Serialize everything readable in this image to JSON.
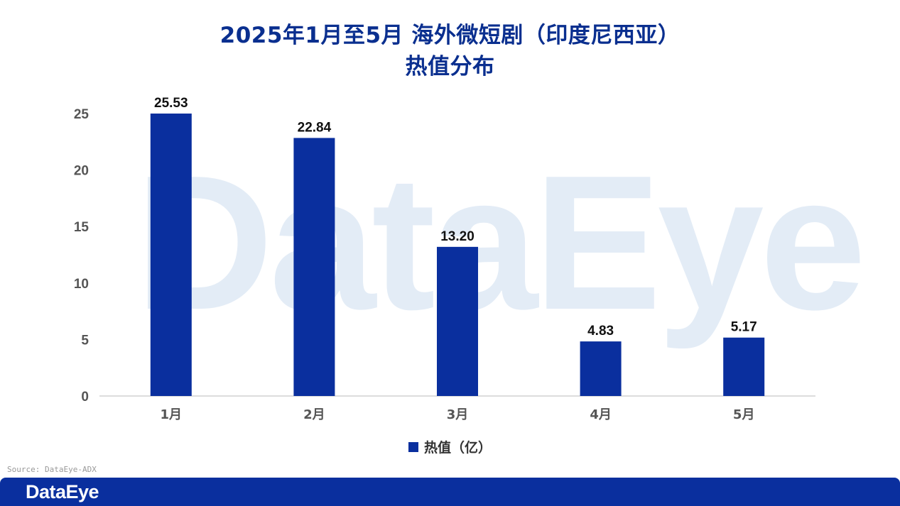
{
  "title": {
    "line1": "2025年1月至5月  海外微短剧（印度尼西亚）",
    "line2": "热值分布"
  },
  "chart_data": {
    "type": "bar",
    "categories": [
      "1月",
      "2月",
      "3月",
      "4月",
      "5月"
    ],
    "series": [
      {
        "name": "热值（亿）",
        "values": [
          25.53,
          22.84,
          13.2,
          4.83,
          5.17
        ],
        "value_labels": [
          "25.53",
          "22.84",
          "13.20",
          "4.83",
          "5.17"
        ]
      }
    ],
    "ylim": [
      0,
      25
    ],
    "yticks": [
      0,
      5,
      10,
      15,
      20,
      25
    ],
    "grid": false,
    "legend_position": "bottom-center",
    "bar_color": "#0a2f9e"
  },
  "legend": {
    "label": "热值（亿）"
  },
  "watermark": "DataEye",
  "source": "Source: DataEye-ADX",
  "footer": {
    "logo": "DataEye",
    "bar_color": "#0a2f9e"
  }
}
